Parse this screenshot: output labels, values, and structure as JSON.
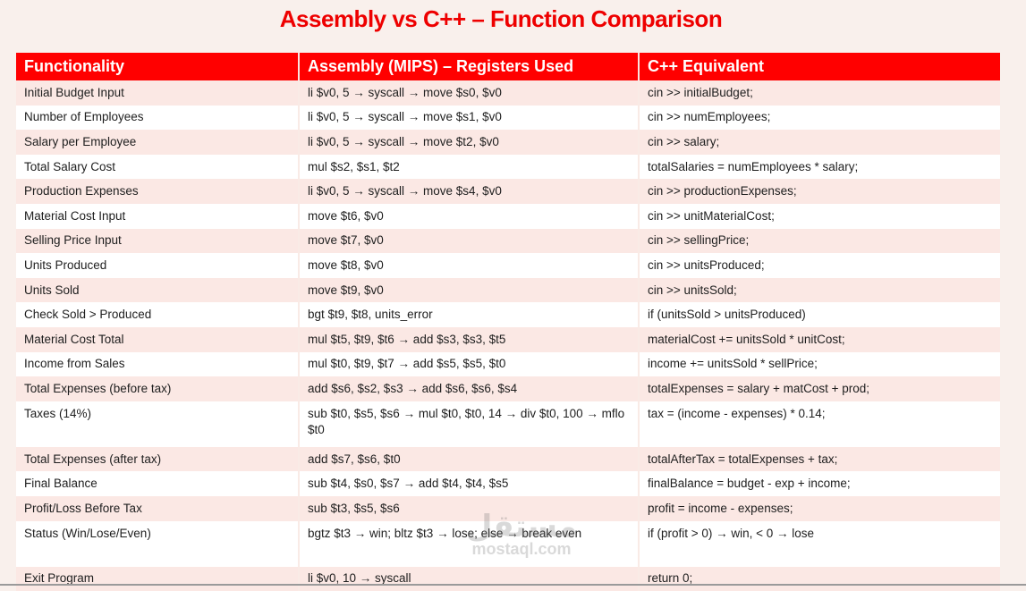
{
  "title": "Assembly vs C++ – Function Comparison",
  "table": {
    "headers": [
      "Functionality",
      "Assembly (MIPS) – Registers Used",
      "C++ Equivalent"
    ],
    "rows": [
      [
        "Initial Budget Input",
        "li $v0, 5 → syscall → move $s0, $v0",
        "cin >> initialBudget;"
      ],
      [
        "Number of Employees",
        "li $v0, 5 → syscall → move $s1, $v0",
        "cin >> numEmployees;"
      ],
      [
        "Salary per Employee",
        "li $v0, 5 → syscall → move $t2, $v0",
        "cin >> salary;"
      ],
      [
        "Total Salary Cost",
        "mul $s2, $s1, $t2",
        "totalSalaries = numEmployees * salary;"
      ],
      [
        "Production Expenses",
        "li $v0, 5 → syscall → move $s4, $v0",
        "cin >> productionExpenses;"
      ],
      [
        "Material Cost Input",
        "move $t6, $v0",
        "cin >> unitMaterialCost;"
      ],
      [
        "Selling Price Input",
        "move $t7, $v0",
        "cin >> sellingPrice;"
      ],
      [
        "Units Produced",
        "move $t8, $v0",
        "cin >> unitsProduced;"
      ],
      [
        "Units Sold",
        "move $t9, $v0",
        "cin >> unitsSold;"
      ],
      [
        "Check Sold > Produced",
        "bgt $t9, $t8, units_error",
        "if (unitsSold > unitsProduced)"
      ],
      [
        "Material Cost Total",
        "mul $t5, $t9, $t6 → add $s3, $s3, $t5",
        "materialCost += unitsSold * unitCost;"
      ],
      [
        "Income from Sales",
        "mul $t0, $t9, $t7 → add $s5, $s5, $t0",
        "income += unitsSold * sellPrice;"
      ],
      [
        "Total Expenses (before tax)",
        "add $s6, $s2, $s3 → add $s6, $s6, $s4",
        "totalExpenses = salary + matCost + prod;"
      ],
      [
        "Taxes (14%)",
        "sub $t0, $s5, $s6 → mul $t0, $t0, 14 → div $t0, 100 → mflo $t0",
        "tax = (income - expenses) * 0.14;"
      ],
      [
        "Total Expenses (after tax)",
        "add $s7, $s6, $t0",
        "totalAfterTax = totalExpenses + tax;"
      ],
      [
        "Final Balance",
        "sub $t4, $s0, $s7 → add $t4, $t4, $s5",
        "finalBalance = budget - exp + income;"
      ],
      [
        "Profit/Loss Before Tax",
        "sub $t3, $s5, $s6",
        "profit = income - expenses;"
      ],
      [
        "Status (Win/Lose/Even)",
        "bgtz $t3 → win; bltz $t3 → lose; else → break even",
        "if (profit > 0) → win, < 0 → lose"
      ],
      [
        "Exit Program",
        "li $v0, 10 → syscall",
        "return 0;"
      ]
    ]
  },
  "watermark": {
    "arabic": "مستقل",
    "latin": "mostaql.com"
  },
  "colors": {
    "accent": "#ff0000",
    "title": "#ee0000",
    "row_alt": "#fbe8e4",
    "background": "#f9f0ec"
  }
}
